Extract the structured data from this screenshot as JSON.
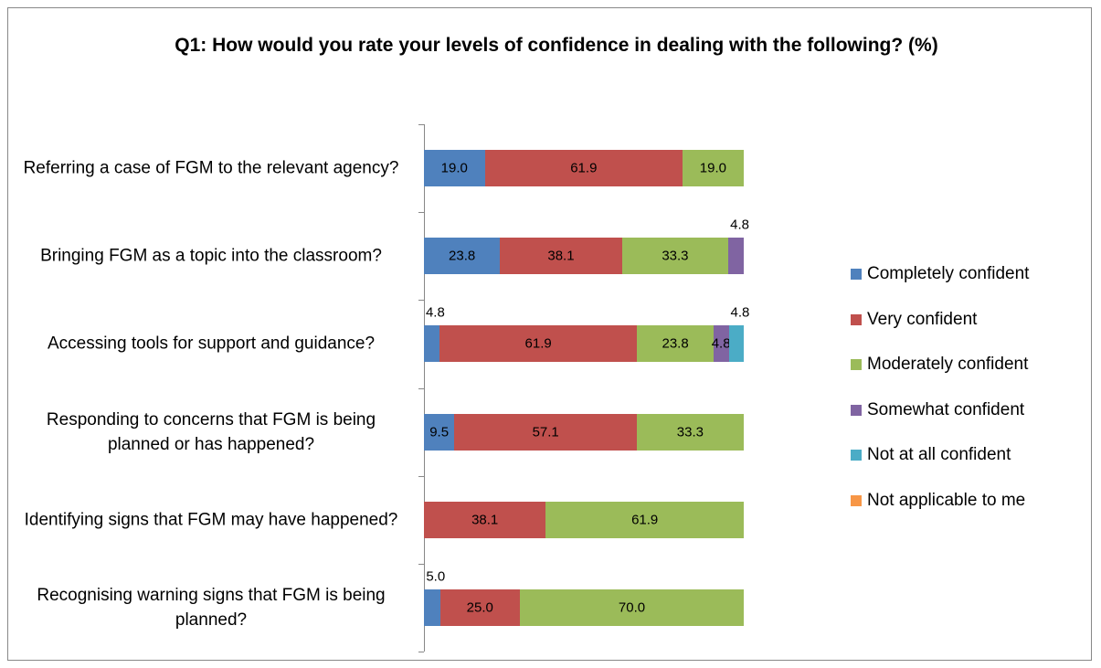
{
  "chart_data": {
    "type": "stacked_bar_horizontal",
    "title": "Q1: How would you rate your levels of confidence in dealing with the following? (%)",
    "categories": [
      "Referring a case of FGM to the relevant agency?",
      "Bringing FGM as a topic into the classroom?",
      "Accessing tools for support and guidance?",
      "Responding to concerns that FGM is being planned or has happened?",
      "Identifying signs that FGM may have happened?",
      "Recognising warning signs that FGM is being planned?"
    ],
    "xlim": [
      0,
      100
    ],
    "legend": "right",
    "series": [
      {
        "name": "Completely confident",
        "color": "#4f81bd",
        "values": [
          19.0,
          23.8,
          4.8,
          9.5,
          null,
          5.0
        ],
        "value_labels": [
          "19.0",
          "23.8",
          "4.8",
          "9.5",
          null,
          "5.0"
        ]
      },
      {
        "name": "Very confident",
        "color": "#c0504d",
        "values": [
          61.9,
          38.1,
          61.9,
          57.1,
          38.1,
          25.0
        ],
        "value_labels": [
          "61.9",
          "38.1",
          "61.9",
          "57.1",
          "38.1",
          "25.0"
        ]
      },
      {
        "name": "Moderately confident",
        "color": "#9bbb59",
        "values": [
          19.0,
          33.3,
          23.8,
          33.3,
          61.9,
          70.0
        ],
        "value_labels": [
          "19.0",
          "33.3",
          "23.8",
          "33.3",
          "61.9",
          "70.0"
        ]
      },
      {
        "name": "Somewhat confident",
        "color": "#8064a2",
        "values": [
          null,
          4.8,
          4.8,
          null,
          null,
          null
        ],
        "value_labels": [
          null,
          "4.8",
          "4.8",
          null,
          null,
          null
        ]
      },
      {
        "name": "Not at all confident",
        "color": "#4bacc6",
        "values": [
          null,
          null,
          4.8,
          null,
          null,
          null
        ],
        "value_labels": [
          null,
          null,
          "4.8",
          null,
          null,
          null
        ]
      },
      {
        "name": "Not applicable to me",
        "color": "#f79646",
        "values": [
          null,
          null,
          null,
          null,
          null,
          null
        ],
        "value_labels": [
          null,
          null,
          null,
          null,
          null,
          null
        ]
      }
    ]
  }
}
